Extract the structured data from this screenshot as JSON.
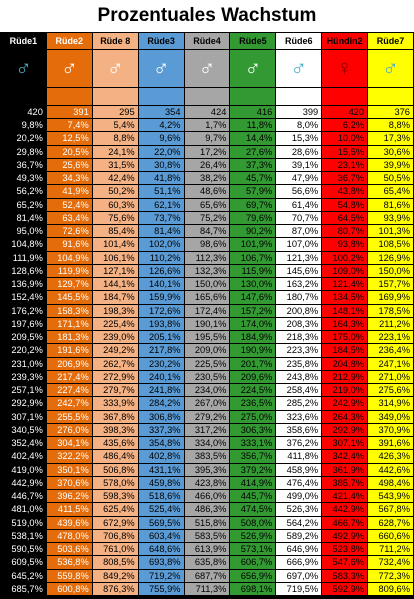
{
  "title": "Prozentuales Wachstum",
  "chart_data": {
    "type": "table",
    "title": "Prozentuales Wachstum",
    "row_labels": [
      "420",
      "9,8%",
      "20,2%",
      "29,8%",
      "36,7%",
      "49,3%",
      "56,2%",
      "65,2%",
      "81,4%",
      "95,0%",
      "104,8%",
      "111,9%",
      "128,6%",
      "136,9%",
      "152,4%",
      "176,2%",
      "197,6%",
      "209,5%",
      "220,2%",
      "231,0%",
      "239,3%",
      "257,1%",
      "292,9%",
      "307,1%",
      "340,5%",
      "352,4%",
      "402,4%",
      "419,0%",
      "442,9%",
      "446,7%",
      "481,0%",
      "519,0%",
      "538,1%",
      "590,5%",
      "609,5%",
      "645,2%",
      "685,7%"
    ],
    "columns": [
      {
        "header": "Rüde2",
        "symbol": "♂",
        "bg": "#e46c0a",
        "fg": "#ffffff",
        "sym_color": "#ffffff",
        "values": [
          "391",
          "7,4%",
          "12,5%",
          "20,5%",
          "25,6%",
          "34,3%",
          "41,9%",
          "52,4%",
          "63,4%",
          "72,6%",
          "91,6%",
          "104,9%",
          "119,9%",
          "129,7%",
          "145,5%",
          "158,3%",
          "171,1%",
          "181,3%",
          "191,6%",
          "206,9%",
          "217,4%",
          "227,4%",
          "242,7%",
          "255,5%",
          "276,0%",
          "304,1%",
          "322,2%",
          "350,1%",
          "370,6%",
          "396,2%",
          "411,5%",
          "439,6%",
          "478,0%",
          "503,6%",
          "536,8%",
          "559,8%",
          "600,8%"
        ]
      },
      {
        "header": "Rüde 8",
        "symbol": "♂",
        "bg": "#f4b183",
        "fg": "#000000",
        "sym_color": "#ffffff",
        "values": [
          "295",
          "5,4%",
          "8,8%",
          "24,1%",
          "31,5%",
          "42,4%",
          "50,2%",
          "60,3%",
          "75,6%",
          "85,4%",
          "101,4%",
          "106,1%",
          "127,1%",
          "144,1%",
          "184,7%",
          "198,3%",
          "225,4%",
          "239,0%",
          "249,2%",
          "262,7%",
          "272,9%",
          "279,7%",
          "333,9%",
          "367,8%",
          "398,3%",
          "435,6%",
          "486,4%",
          "506,8%",
          "578,0%",
          "598,3%",
          "625,4%",
          "672,9%",
          "706,8%",
          "761,0%",
          "808,5%",
          "849,2%",
          "876,3%"
        ]
      },
      {
        "header": "Rüde3",
        "symbol": "♂",
        "bg": "#5b9bd5",
        "fg": "#000000",
        "sym_color": "#ffffff",
        "values": [
          "354",
          "4,2%",
          "9,6%",
          "22,0%",
          "30,8%",
          "41,8%",
          "51,1%",
          "62,1%",
          "73,7%",
          "81,4%",
          "102,0%",
          "110,2%",
          "126,6%",
          "140,1%",
          "159,9%",
          "172,6%",
          "193,8%",
          "205,1%",
          "217,8%",
          "230,2%",
          "240,1%",
          "241,8%",
          "284,2%",
          "306,8%",
          "337,3%",
          "354,8%",
          "402,8%",
          "431,1%",
          "459,8%",
          "518,6%",
          "525,4%",
          "569,5%",
          "603,4%",
          "648,6%",
          "693,8%",
          "719,2%",
          "755,9%"
        ]
      },
      {
        "header": "Rüde4",
        "symbol": "♂",
        "bg": "#a6a6a6",
        "fg": "#000000",
        "sym_color": "#ffffff",
        "values": [
          "424",
          "1,7%",
          "9,7%",
          "17,2%",
          "26,4%",
          "38,2%",
          "48,6%",
          "65,6%",
          "75,2%",
          "84,7%",
          "98,6%",
          "112,3%",
          "132,3%",
          "150,0%",
          "165,6%",
          "172,4%",
          "190,1%",
          "195,5%",
          "209,0%",
          "225,5%",
          "230,5%",
          "234,0%",
          "267,0%",
          "279,2%",
          "317,2%",
          "334,0%",
          "383,5%",
          "395,3%",
          "423,8%",
          "466,0%",
          "486,3%",
          "515,8%",
          "583,5%",
          "613,9%",
          "635,8%",
          "687,7%",
          "711,3%"
        ]
      },
      {
        "header": "Rüde5",
        "symbol": "♂",
        "bg": "#339933",
        "fg": "#000000",
        "sym_color": "#ffffff",
        "values": [
          "416",
          "11,8%",
          "14,4%",
          "27,6%",
          "37,3%",
          "45,7%",
          "57,9%",
          "69,7%",
          "79,6%",
          "90,2%",
          "101,9%",
          "106,7%",
          "115,9%",
          "130,0%",
          "147,6%",
          "157,2%",
          "174,0%",
          "184,9%",
          "190,9%",
          "201,7%",
          "209,6%",
          "224,5%",
          "236,5%",
          "275,0%",
          "306,3%",
          "333,1%",
          "356,7%",
          "379,2%",
          "414,9%",
          "445,7%",
          "474,5%",
          "508,0%",
          "526,9%",
          "573,1%",
          "606,7%",
          "656,9%",
          "698,1%"
        ]
      },
      {
        "header": "Rüde6",
        "symbol": "♂",
        "bg": "#ffffff",
        "fg": "#000000",
        "sym_color": "#4bacc6",
        "values": [
          "399",
          "8,0%",
          "15,3%",
          "28,6%",
          "39,1%",
          "47,9%",
          "56,6%",
          "61,4%",
          "70,7%",
          "87,0%",
          "107,0%",
          "121,3%",
          "145,6%",
          "163,2%",
          "180,7%",
          "200,8%",
          "208,3%",
          "218,3%",
          "223,3%",
          "235,8%",
          "243,8%",
          "258,4%",
          "285,2%",
          "323,6%",
          "358,6%",
          "376,2%",
          "411,8%",
          "458,9%",
          "476,4%",
          "499,0%",
          "526,3%",
          "564,2%",
          "589,2%",
          "646,9%",
          "666,9%",
          "697,0%",
          "719,5%"
        ]
      },
      {
        "header": "Hündin2",
        "symbol": "♀",
        "bg": "#ff0000",
        "fg": "#000000",
        "sym_color": "#8b0000",
        "values": [
          "420",
          "6,2%",
          "10,0%",
          "15,5%",
          "23,1%",
          "36,7%",
          "43,8%",
          "54,8%",
          "64,5%",
          "80,7%",
          "93,8%",
          "100,2%",
          "109,0%",
          "121,4%",
          "134,5%",
          "148,1%",
          "164,3%",
          "175,0%",
          "184,5%",
          "204,8%",
          "212,9%",
          "219,0%",
          "242,9%",
          "264,3%",
          "292,9%",
          "307,1%",
          "342,4%",
          "361,9%",
          "385,7%",
          "421,4%",
          "442,9%",
          "466,7%",
          "492,9%",
          "523,8%",
          "547,6%",
          "583,3%",
          "592,9%"
        ]
      },
      {
        "header": "Rüde7",
        "symbol": "♂",
        "bg": "#ffff00",
        "fg": "#000000",
        "sym_color": "#4bacc6",
        "values": [
          "376",
          "8,8%",
          "17,3%",
          "30,6%",
          "39,9%",
          "50,5%",
          "65,4%",
          "81,6%",
          "93,9%",
          "101,3%",
          "108,5%",
          "126,9%",
          "150,0%",
          "157,7%",
          "169,9%",
          "178,5%",
          "211,2%",
          "223,1%",
          "236,4%",
          "247,1%",
          "271,0%",
          "275,6%",
          "314,9%",
          "349,0%",
          "370,9%",
          "391,6%",
          "426,3%",
          "442,6%",
          "498,4%",
          "543,9%",
          "567,8%",
          "628,7%",
          "660,6%",
          "711,2%",
          "732,4%",
          "772,3%",
          "809,6%"
        ]
      }
    ],
    "first_column": {
      "header": "Rüde1",
      "symbol": "♂",
      "bg": "#000000",
      "fg": "#ffffff",
      "sym_color": "#4bacc6"
    }
  }
}
